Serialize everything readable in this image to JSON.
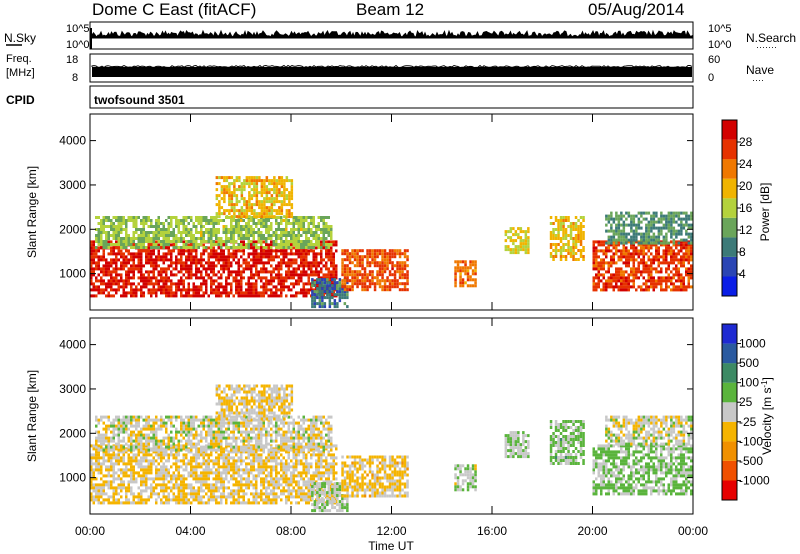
{
  "header": {
    "station": "Dome C East (fitACF)",
    "beam": "Beam 12",
    "date": "05/Aug/2014"
  },
  "noise_panel": {
    "left_label": "N.Sky",
    "right_label": "N.Search",
    "right_dots": "·······",
    "left_ticks": [
      "10^5",
      "10^0"
    ],
    "right_ticks": [
      "10^5",
      "10^0"
    ]
  },
  "freq_panel": {
    "left_label_line1": "Freq.",
    "left_label_line2": "[MHz]",
    "right_label": "Nave",
    "right_dots": "····",
    "left_ticks": [
      "18",
      "8"
    ],
    "right_ticks": [
      "60",
      "0"
    ]
  },
  "cpid": {
    "label": "CPID",
    "value": "twofsound 3501"
  },
  "axes": {
    "x_label": "Time UT",
    "x_ticks": [
      "00:00",
      "04:00",
      "08:00",
      "12:00",
      "16:00",
      "20:00",
      "00:00"
    ],
    "y_label": "Slant Range [km]",
    "y_ticks": [
      "1000",
      "2000",
      "3000",
      "4000"
    ]
  },
  "colors": {
    "power": [
      "#0a1ee6",
      "#2a45b4",
      "#3c7a78",
      "#6aa55a",
      "#b4d23c",
      "#f0b400",
      "#f07800",
      "#e63200",
      "#d20000"
    ],
    "velocity": [
      "#e60000",
      "#f05000",
      "#f09000",
      "#f5b400",
      "#c8c8c8",
      "#5ab43c",
      "#3c8a64",
      "#2a5aa0",
      "#1e2ad2"
    ]
  },
  "chart_data": [
    {
      "type": "heatmap",
      "title": "",
      "xlabel": "Time UT",
      "ylabel": "Slant Range [km]",
      "xlim": [
        0,
        24
      ],
      "ylim": [
        180,
        4600
      ],
      "colorbar": {
        "label": "Power [dB]",
        "ticks": [
          "4",
          "8",
          "12",
          "16",
          "20",
          "24",
          "28"
        ],
        "range": [
          0,
          30
        ]
      },
      "regions": [
        {
          "t0": 0.0,
          "t1": 9.8,
          "r0": 500,
          "r1": 1750,
          "value": 27
        },
        {
          "t0": 0.2,
          "t1": 9.6,
          "r0": 1600,
          "r1": 2300,
          "value": 14
        },
        {
          "t0": 5.0,
          "t1": 8.0,
          "r0": 2300,
          "r1": 3200,
          "value": 18
        },
        {
          "t0": 8.8,
          "t1": 10.2,
          "r0": 250,
          "r1": 900,
          "value": 8
        },
        {
          "t0": 10.0,
          "t1": 12.6,
          "r0": 650,
          "r1": 1550,
          "value": 24
        },
        {
          "t0": 14.5,
          "t1": 15.3,
          "r0": 700,
          "r1": 1300,
          "value": 22
        },
        {
          "t0": 16.5,
          "t1": 17.4,
          "r0": 1500,
          "r1": 2050,
          "value": 16
        },
        {
          "t0": 18.3,
          "t1": 19.6,
          "r0": 1300,
          "r1": 2300,
          "value": 18
        },
        {
          "t0": 20.0,
          "t1": 23.9,
          "r0": 600,
          "r1": 1750,
          "value": 25
        },
        {
          "t0": 20.5,
          "t1": 23.9,
          "r0": 1700,
          "r1": 2400,
          "value": 10
        }
      ]
    },
    {
      "type": "heatmap",
      "title": "",
      "xlabel": "Time UT",
      "ylabel": "Slant Range [km]",
      "xlim": [
        0,
        24
      ],
      "ylim": [
        180,
        4600
      ],
      "colorbar": {
        "label": "Velocity [m s^-1]",
        "ticks": [
          "1000",
          "500",
          "100",
          "25",
          "-25",
          "-100",
          "-500",
          "-1000"
        ],
        "range": [
          -1200,
          1200
        ]
      },
      "regions": [
        {
          "t0": 0.0,
          "t1": 9.8,
          "r0": 450,
          "r1": 1750,
          "value": -150
        },
        {
          "t0": 0.2,
          "t1": 9.6,
          "r0": 1600,
          "r1": 2400,
          "value": -20
        },
        {
          "t0": 5.0,
          "t1": 8.0,
          "r0": 2300,
          "r1": 3100,
          "value": -120
        },
        {
          "t0": 8.8,
          "t1": 10.2,
          "r0": 250,
          "r1": 900,
          "value": 80
        },
        {
          "t0": 10.0,
          "t1": 12.6,
          "r0": 600,
          "r1": 1500,
          "value": -200
        },
        {
          "t0": 14.5,
          "t1": 15.3,
          "r0": 700,
          "r1": 1300,
          "value": 40
        },
        {
          "t0": 16.5,
          "t1": 17.4,
          "r0": 1500,
          "r1": 2050,
          "value": 150
        },
        {
          "t0": 18.3,
          "t1": 19.6,
          "r0": 1300,
          "r1": 2300,
          "value": 200
        },
        {
          "t0": 20.0,
          "t1": 23.9,
          "r0": 600,
          "r1": 1750,
          "value": 180
        },
        {
          "t0": 20.5,
          "t1": 23.9,
          "r0": 1750,
          "r1": 2400,
          "value": -15
        }
      ]
    }
  ]
}
